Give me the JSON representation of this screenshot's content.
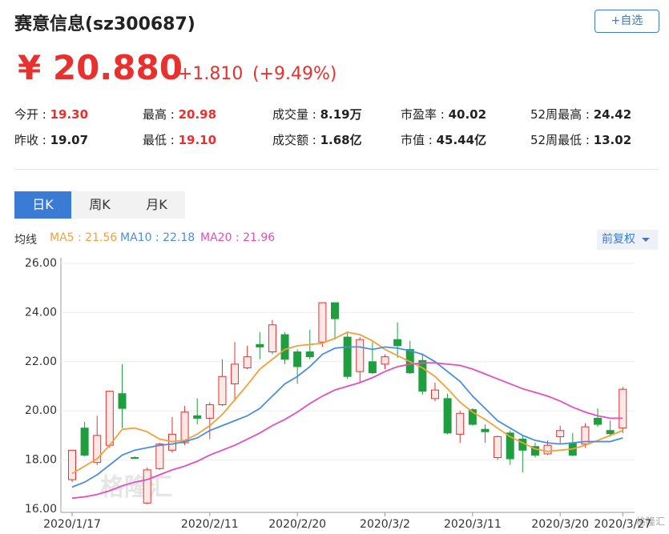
{
  "header": {
    "title": "赛意信息(sz300687)",
    "button": "+自选",
    "price": "¥ 20.880",
    "change": "+1.810",
    "change_pct": "(+9.49%)"
  },
  "stats": [
    [
      {
        "label": "今开 : ",
        "value": "19.30",
        "color": "#e8312f"
      },
      {
        "label": "最高 : ",
        "value": "20.98",
        "color": "#e8312f"
      },
      {
        "label": "成交量 : ",
        "value": "8.19万",
        "color": "#222"
      },
      {
        "label": "市盈率 : ",
        "value": "40.02",
        "color": "#222"
      },
      {
        "label": "52周最高 : ",
        "value": "24.42",
        "color": "#222"
      }
    ],
    [
      {
        "label": "昨收 : ",
        "value": "19.07",
        "color": "#222"
      },
      {
        "label": "最低 : ",
        "value": "19.10",
        "color": "#e8312f"
      },
      {
        "label": "成交额 : ",
        "value": "1.68亿",
        "color": "#222"
      },
      {
        "label": "市值 : ",
        "value": "45.44亿",
        "color": "#222"
      },
      {
        "label": "52周最低 : ",
        "value": "13.02",
        "color": "#222"
      }
    ]
  ],
  "tabs": [
    "日K",
    "周K",
    "月K"
  ],
  "indicator": "均线",
  "adjust": "前复权",
  "watermark": "格隆汇",
  "chart_data": {
    "type": "candlestick",
    "categories": [
      "2020/1/17",
      null,
      null,
      null,
      null,
      null,
      null,
      null,
      null,
      null,
      null,
      "2020/2/11",
      null,
      null,
      null,
      null,
      null,
      null,
      "2020/2/20",
      null,
      null,
      null,
      null,
      null,
      null,
      "2020/3/2",
      null,
      null,
      null,
      null,
      null,
      null,
      "2020/3/11",
      null,
      null,
      null,
      null,
      null,
      null,
      "2020/3/20",
      null,
      null,
      null,
      null,
      "2020/3/27"
    ],
    "open": [
      17.2,
      19.3,
      17.9,
      18.6,
      20.7,
      18.1,
      16.25,
      17.65,
      18.4,
      18.7,
      19.8,
      19.7,
      20.25,
      21.1,
      21.75,
      22.7,
      22.4,
      23.1,
      22.4,
      22.4,
      22.8,
      24.4,
      23.0,
      21.6,
      22.0,
      21.9,
      22.9,
      22.5,
      22.05,
      20.5,
      20.5,
      19.05,
      20.05,
      19.25,
      18.1,
      19.1,
      18.85,
      18.55,
      18.25,
      18.95,
      18.7,
      18.65,
      19.7,
      19.2,
      19.3
    ],
    "high": [
      18.4,
      19.55,
      19.8,
      20.8,
      21.9,
      18.15,
      17.7,
      18.7,
      19.75,
      20.2,
      20.5,
      20.35,
      22.1,
      22.8,
      22.65,
      23.2,
      23.7,
      23.2,
      22.5,
      23.3,
      24.42,
      24.4,
      23.2,
      23.0,
      22.8,
      22.3,
      23.6,
      22.85,
      22.3,
      21.15,
      20.7,
      20.0,
      20.1,
      19.45,
      19.0,
      19.2,
      19.0,
      18.7,
      18.8,
      19.4,
      19.1,
      19.5,
      20.1,
      19.6,
      20.98
    ],
    "low": [
      17.1,
      18.15,
      17.8,
      18.5,
      19.3,
      18.05,
      16.2,
      17.6,
      18.3,
      18.6,
      19.45,
      18.85,
      20.2,
      20.4,
      21.7,
      22.1,
      22.3,
      21.9,
      21.1,
      22.1,
      22.6,
      22.9,
      21.3,
      21.15,
      21.5,
      21.7,
      22.15,
      21.5,
      20.65,
      20.4,
      19.05,
      18.7,
      19.4,
      18.7,
      18.0,
      17.8,
      17.5,
      18.1,
      18.2,
      18.65,
      18.15,
      18.5,
      19.35,
      18.95,
      19.1
    ],
    "close": [
      18.4,
      18.2,
      19.0,
      20.8,
      20.1,
      18.08,
      17.6,
      18.65,
      19.05,
      19.95,
      19.7,
      20.25,
      21.4,
      21.9,
      22.2,
      22.6,
      23.5,
      22.1,
      21.8,
      22.2,
      24.4,
      23.75,
      21.4,
      22.9,
      21.55,
      22.2,
      22.65,
      21.55,
      20.8,
      20.85,
      19.1,
      19.9,
      19.45,
      19.15,
      18.95,
      18.05,
      18.4,
      18.2,
      18.6,
      19.2,
      18.2,
      19.35,
      19.45,
      19.07,
      20.88
    ],
    "up_color": "#e8312f",
    "up_fill": "#fde8e8",
    "down_color": "#1e9e3e",
    "series": [
      {
        "name": "MA5 : 21.56",
        "color": "#f4a03a",
        "values": [
          17.45,
          17.75,
          18.05,
          18.6,
          19.25,
          19.3,
          19.15,
          18.85,
          18.75,
          18.8,
          19.05,
          19.4,
          19.85,
          20.45,
          21.05,
          21.7,
          22.1,
          22.5,
          22.65,
          22.7,
          22.75,
          22.95,
          23.2,
          23.1,
          22.85,
          22.5,
          22.25,
          22.0,
          21.75,
          21.4,
          20.9,
          20.35,
          19.95,
          19.65,
          19.3,
          18.95,
          18.7,
          18.45,
          18.35,
          18.4,
          18.45,
          18.6,
          18.8,
          19.0,
          19.2
        ]
      },
      {
        "name": "MA10 : 22.18",
        "color": "#4a8ee0",
        "values": [
          16.9,
          17.1,
          17.4,
          17.8,
          18.2,
          18.4,
          18.5,
          18.6,
          18.65,
          18.75,
          18.9,
          19.2,
          19.4,
          19.6,
          19.8,
          20.1,
          20.6,
          21.1,
          21.4,
          21.8,
          22.3,
          22.55,
          22.6,
          22.6,
          22.5,
          22.6,
          22.55,
          22.45,
          22.3,
          22.0,
          21.6,
          21.2,
          20.6,
          20.1,
          19.6,
          19.3,
          19.0,
          18.8,
          18.7,
          18.65,
          18.7,
          18.75,
          18.75,
          18.75,
          18.9
        ]
      },
      {
        "name": "MA20 : 21.96",
        "color": "#e24fbf",
        "values": [
          16.45,
          16.5,
          16.6,
          16.75,
          16.95,
          17.1,
          17.2,
          17.4,
          17.6,
          17.75,
          17.95,
          18.2,
          18.4,
          18.6,
          18.85,
          19.1,
          19.4,
          19.65,
          19.95,
          20.3,
          20.6,
          20.85,
          21.0,
          21.15,
          21.35,
          21.6,
          21.8,
          21.9,
          21.95,
          21.95,
          21.9,
          21.85,
          21.7,
          21.5,
          21.3,
          21.1,
          20.9,
          20.75,
          20.6,
          20.4,
          20.15,
          19.95,
          19.8,
          19.7,
          19.7
        ]
      }
    ],
    "ylim": [
      16,
      26
    ],
    "yticks": [
      {
        "value": 16,
        "label": "16.00"
      },
      {
        "value": 18,
        "label": "18.00"
      },
      {
        "value": 20,
        "label": "20.00"
      },
      {
        "value": 22,
        "label": "22.00"
      },
      {
        "value": 24,
        "label": "24.00"
      },
      {
        "value": 26,
        "label": "26.00"
      }
    ],
    "grid": true
  }
}
